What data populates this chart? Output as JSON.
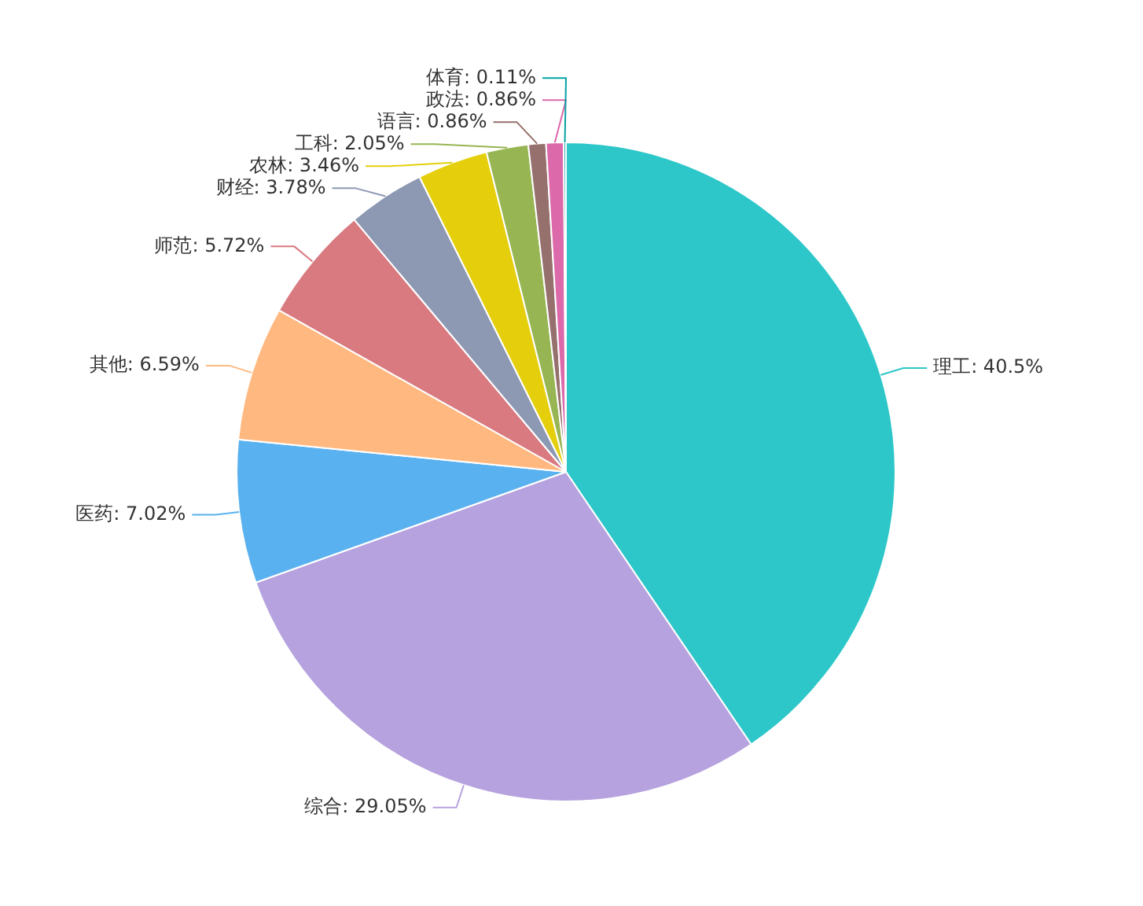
{
  "chart_data": {
    "type": "pie",
    "categories": [
      "理工",
      "综合",
      "医药",
      "其他",
      "师范",
      "财经",
      "农林",
      "工科",
      "语言",
      "政法",
      "体育"
    ],
    "values": [
      40.5,
      29.05,
      7.02,
      6.59,
      5.72,
      3.78,
      3.46,
      2.05,
      0.86,
      0.86,
      0.11
    ],
    "colors": [
      "#2ec7c9",
      "#b6a2de",
      "#5ab1ef",
      "#ffb980",
      "#d87a80",
      "#8d98b3",
      "#e5cf0d",
      "#97b552",
      "#95706d",
      "#dc69aa",
      "#07a2a4"
    ],
    "value_labels": [
      "40.5%",
      "29.05%",
      "7.02%",
      "6.59%",
      "5.72%",
      "3.78%",
      "3.46%",
      "2.05%",
      "0.86%",
      "0.86%",
      "0.11%"
    ]
  }
}
